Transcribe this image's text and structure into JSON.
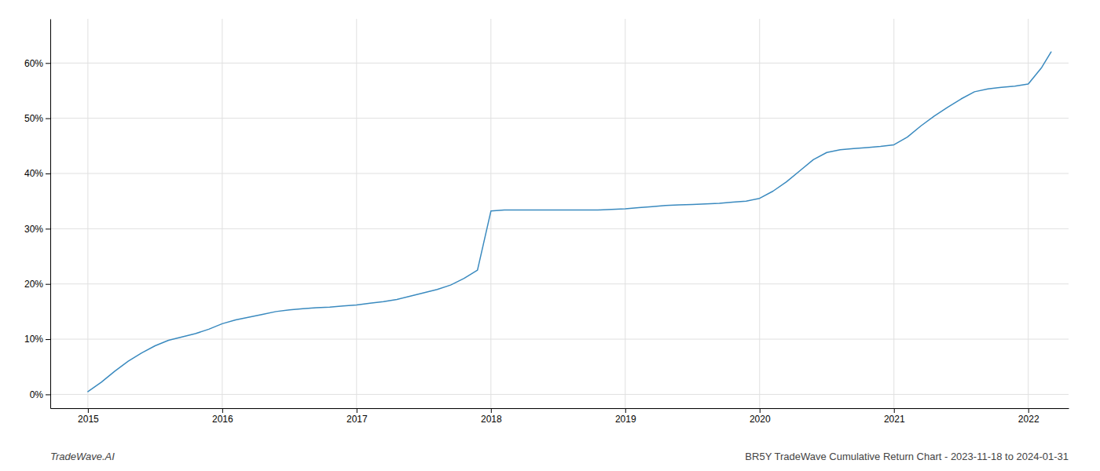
{
  "chart_data": {
    "type": "line",
    "color": "#3a8abf",
    "grid": true,
    "annotations": [
      "TradeWave.AI",
      "BR5Y TradeWave Cumulative Return Chart - 2023-11-18 to 2024-01-31"
    ],
    "xlim": [
      2014.72,
      2022.3
    ],
    "ylim": [
      -0.025,
      0.68
    ],
    "xticks": [
      2015,
      2016,
      2017,
      2018,
      2019,
      2020,
      2021,
      2022
    ],
    "yticks": [
      {
        "value": 0.0,
        "label": "0%"
      },
      {
        "value": 0.1,
        "label": "10%"
      },
      {
        "value": 0.2,
        "label": "20%"
      },
      {
        "value": 0.3,
        "label": "30%"
      },
      {
        "value": 0.4,
        "label": "40%"
      },
      {
        "value": 0.5,
        "label": "50%"
      },
      {
        "value": 0.6,
        "label": "60%"
      }
    ],
    "x": [
      2015.0,
      2015.1,
      2015.2,
      2015.3,
      2015.4,
      2015.5,
      2015.6,
      2015.7,
      2015.8,
      2015.9,
      2016.0,
      2016.1,
      2016.2,
      2016.3,
      2016.4,
      2016.5,
      2016.6,
      2016.7,
      2016.8,
      2016.9,
      2017.0,
      2017.1,
      2017.2,
      2017.3,
      2017.4,
      2017.5,
      2017.6,
      2017.7,
      2017.8,
      2017.9,
      2018.0,
      2018.1,
      2018.2,
      2018.3,
      2018.4,
      2018.5,
      2018.6,
      2018.7,
      2018.8,
      2018.9,
      2019.0,
      2019.1,
      2019.2,
      2019.3,
      2019.4,
      2019.5,
      2019.6,
      2019.7,
      2019.8,
      2019.9,
      2020.0,
      2020.1,
      2020.2,
      2020.3,
      2020.4,
      2020.5,
      2020.6,
      2020.7,
      2020.8,
      2020.9,
      2021.0,
      2021.1,
      2021.2,
      2021.3,
      2021.4,
      2021.5,
      2021.6,
      2021.7,
      2021.8,
      2021.9,
      2022.0,
      2022.1,
      2022.17
    ],
    "values": [
      0.005,
      0.022,
      0.042,
      0.06,
      0.075,
      0.088,
      0.098,
      0.104,
      0.11,
      0.118,
      0.128,
      0.135,
      0.14,
      0.145,
      0.15,
      0.153,
      0.155,
      0.157,
      0.158,
      0.16,
      0.162,
      0.165,
      0.168,
      0.172,
      0.178,
      0.184,
      0.19,
      0.198,
      0.21,
      0.225,
      0.332,
      0.334,
      0.334,
      0.334,
      0.334,
      0.334,
      0.334,
      0.334,
      0.334,
      0.335,
      0.336,
      0.338,
      0.34,
      0.342,
      0.343,
      0.344,
      0.345,
      0.346,
      0.348,
      0.35,
      0.355,
      0.368,
      0.385,
      0.405,
      0.425,
      0.438,
      0.443,
      0.445,
      0.447,
      0.449,
      0.452,
      0.466,
      0.486,
      0.504,
      0.52,
      0.535,
      0.548,
      0.553,
      0.556,
      0.558,
      0.562,
      0.592,
      0.62
    ]
  }
}
